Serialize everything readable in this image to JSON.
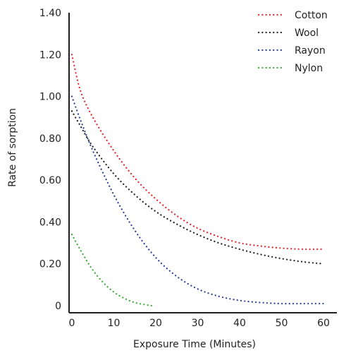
{
  "chart_data": {
    "type": "line",
    "title": "",
    "xlabel": "Exposure Time (Minutes)",
    "ylabel": "Rate of sorption",
    "xlim": [
      0,
      62
    ],
    "ylim": [
      0,
      1.4
    ],
    "xticks": [
      0,
      10,
      20,
      30,
      40,
      50,
      60
    ],
    "xtick_labels": [
      "0",
      "10",
      "20",
      "30",
      "40",
      "50",
      "60"
    ],
    "yticks": [
      0,
      0.2,
      0.4,
      0.6,
      0.8,
      1.0,
      1.2,
      1.4
    ],
    "ytick_labels": [
      "0",
      "0.20",
      "0.40",
      "0.60",
      "0.80",
      "1.00",
      "1.20",
      "1.40"
    ],
    "grid": false,
    "legend_position": "top-right",
    "line_style": "dotted",
    "series": [
      {
        "name": "Cotton",
        "color": "#e0262b",
        "x": [
          0,
          2,
          5,
          10,
          15,
          20,
          25,
          30,
          35,
          40,
          45,
          50,
          55,
          60
        ],
        "y": [
          1.2,
          1.03,
          0.9,
          0.74,
          0.61,
          0.51,
          0.43,
          0.37,
          0.33,
          0.3,
          0.285,
          0.275,
          0.27,
          0.27
        ]
      },
      {
        "name": "Wool",
        "color": "#231f20",
        "x": [
          0,
          2,
          5,
          10,
          15,
          20,
          25,
          30,
          35,
          40,
          45,
          50,
          55,
          60
        ],
        "y": [
          0.93,
          0.86,
          0.76,
          0.63,
          0.53,
          0.45,
          0.39,
          0.34,
          0.3,
          0.27,
          0.245,
          0.225,
          0.21,
          0.2
        ]
      },
      {
        "name": "Rayon",
        "color": "#2a3f96",
        "x": [
          0,
          2,
          5,
          10,
          15,
          20,
          25,
          30,
          35,
          40,
          45,
          50,
          55,
          60
        ],
        "y": [
          1.0,
          0.89,
          0.74,
          0.53,
          0.36,
          0.23,
          0.14,
          0.08,
          0.045,
          0.025,
          0.015,
          0.01,
          0.01,
          0.01
        ]
      },
      {
        "name": "Nylon",
        "color": "#3aaa35",
        "x": [
          0,
          2.5,
          5,
          7.5,
          10,
          12.5,
          15,
          17.5,
          19
        ],
        "y": [
          0.34,
          0.25,
          0.17,
          0.11,
          0.065,
          0.035,
          0.015,
          0.005,
          0.0
        ]
      }
    ]
  }
}
